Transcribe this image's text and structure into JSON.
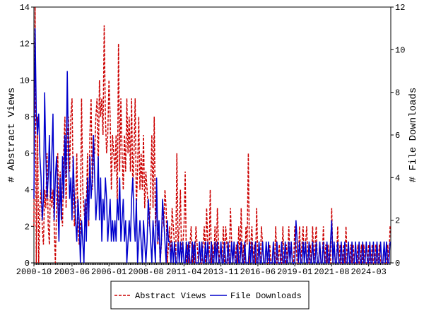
{
  "chart_data": {
    "type": "line",
    "ylabel": "# Abstract Views",
    "y2label": "# File Downloads",
    "categories": [
      "2000-10",
      null,
      null,
      null,
      null,
      null,
      null,
      null,
      null,
      null,
      null,
      null,
      null,
      null,
      null,
      null,
      null,
      null,
      null,
      null,
      null,
      null,
      null,
      null,
      null,
      null,
      null,
      null,
      null,
      null,
      null,
      null,
      "2003-06",
      null,
      null,
      null,
      null,
      null,
      null,
      null,
      null,
      null,
      null,
      null,
      null,
      null,
      null,
      null,
      null,
      null,
      null,
      null,
      null,
      null,
      null,
      null,
      null,
      null,
      null,
      null,
      null,
      null,
      null,
      "2006-01",
      null,
      null,
      null,
      null,
      null,
      null,
      null,
      null,
      null,
      null,
      null,
      null,
      null,
      null,
      null,
      null,
      null,
      null,
      null,
      null,
      null,
      null,
      null,
      null,
      null,
      null,
      null,
      null,
      null,
      null,
      "2008-08",
      null,
      null,
      null,
      null,
      null,
      null,
      null,
      null,
      null,
      null,
      null,
      null,
      null,
      null,
      null,
      null,
      null,
      null,
      null,
      null,
      null,
      null,
      null,
      null,
      null,
      null,
      null,
      null,
      null,
      null,
      null,
      "2011-04",
      null,
      null,
      null,
      null,
      null,
      null,
      null,
      null,
      null,
      null,
      null,
      null,
      null,
      null,
      null,
      null,
      null,
      null,
      null,
      null,
      null,
      null,
      null,
      null,
      null,
      null,
      null,
      null,
      null,
      null,
      "2013-11",
      null,
      null,
      null,
      null,
      null,
      null,
      null,
      null,
      null,
      null,
      null,
      null,
      null,
      null,
      null,
      null,
      null,
      null,
      null,
      null,
      null,
      null,
      null,
      null,
      null,
      null,
      null,
      null,
      null,
      null,
      "2016-06",
      null,
      null,
      null,
      null,
      null,
      null,
      null,
      null,
      null,
      null,
      null,
      null,
      null,
      null,
      null,
      null,
      null,
      null,
      null,
      null,
      null,
      null,
      null,
      null,
      null,
      null,
      null,
      null,
      null,
      null,
      "2019-01",
      null,
      null,
      null,
      null,
      null,
      null,
      null,
      null,
      null,
      null,
      null,
      null,
      null,
      null,
      null,
      null,
      null,
      null,
      null,
      null,
      null,
      null,
      null,
      null,
      null,
      null,
      null,
      null,
      null,
      null,
      "2021-08",
      null,
      null,
      null,
      null,
      null,
      null,
      null,
      null,
      null,
      null,
      null,
      null,
      null,
      null,
      null,
      null,
      null,
      null,
      null,
      null,
      null,
      null,
      null,
      null,
      null,
      null,
      null,
      null,
      null,
      null,
      "2024-03",
      null,
      null,
      null,
      null,
      null,
      null,
      null,
      null,
      null,
      null,
      null,
      null,
      null,
      null,
      null,
      null,
      null,
      null
    ],
    "series": [
      {
        "name": "Abstract Views",
        "color": "#cc0000",
        "dash": true,
        "values": [
          2,
          14,
          0,
          8,
          0,
          3,
          4,
          2,
          1,
          4,
          3,
          6,
          2,
          1,
          5,
          3,
          4,
          2,
          0,
          3,
          6,
          2,
          5,
          3,
          2,
          6,
          8,
          3,
          7,
          8,
          5,
          8,
          9,
          4,
          2,
          3,
          6,
          2,
          1,
          2,
          9,
          4,
          3,
          2,
          3,
          6,
          2,
          7,
          9,
          4,
          6,
          6,
          8,
          9,
          5,
          10,
          8,
          9,
          7,
          13,
          8,
          6,
          7,
          10,
          8,
          4,
          7,
          6,
          5,
          7,
          3,
          12,
          5,
          9,
          6,
          4,
          7,
          5,
          9,
          6,
          8,
          5,
          9,
          4,
          6,
          9,
          3,
          5,
          8,
          4,
          6,
          4,
          7,
          3,
          5,
          4,
          3,
          2,
          4,
          7,
          3,
          8,
          2,
          4,
          1,
          2,
          0,
          1,
          3,
          2,
          4,
          3,
          0,
          1,
          2,
          0,
          3,
          2,
          1,
          0,
          6,
          1,
          2,
          4,
          0,
          1,
          2,
          5,
          0,
          1,
          0,
          1,
          2,
          0,
          1,
          0,
          2,
          1,
          0,
          1,
          0,
          0,
          1,
          2,
          0,
          3,
          1,
          0,
          4,
          0,
          1,
          0,
          2,
          0,
          3,
          1,
          0,
          1,
          0,
          2,
          0,
          2,
          1,
          0,
          0,
          3,
          1,
          0,
          1,
          0,
          1,
          0,
          2,
          0,
          3,
          0,
          1,
          0,
          2,
          1,
          6,
          0,
          1,
          2,
          0,
          1,
          0,
          3,
          0,
          1,
          0,
          2,
          1,
          0,
          0,
          1,
          0,
          0,
          1,
          0,
          0,
          1,
          0,
          2,
          0,
          0,
          1,
          0,
          0,
          2,
          0,
          0,
          1,
          0,
          2,
          0,
          1,
          0,
          0,
          2,
          1,
          0,
          0,
          2,
          0,
          1,
          2,
          0,
          1,
          2,
          0,
          0,
          1,
          0,
          2,
          0,
          1,
          2,
          0,
          0,
          1,
          0,
          0,
          2,
          0,
          1,
          0,
          1,
          0,
          0,
          3,
          0,
          1,
          0,
          0,
          2,
          0,
          1,
          0,
          0,
          1,
          0,
          2,
          0,
          0,
          0,
          1,
          0,
          1,
          0,
          0,
          0,
          1,
          0,
          0,
          1,
          0,
          1,
          0,
          0,
          0,
          1,
          0,
          0,
          1,
          0,
          0,
          1,
          0,
          0,
          1,
          0,
          0,
          0,
          1,
          0,
          0,
          1,
          0,
          2
        ]
      },
      {
        "name": "File Downloads",
        "color": "#0000cc",
        "axis": "y2",
        "values": [
          3,
          11,
          7,
          6,
          7,
          5,
          4,
          2,
          3,
          8,
          5,
          3,
          4,
          6,
          3,
          5,
          7,
          2,
          4,
          5,
          3,
          1,
          4,
          2,
          5,
          3,
          6,
          4,
          9,
          5,
          3,
          4,
          2,
          5,
          3,
          2,
          1,
          3,
          2,
          0,
          2,
          1,
          0,
          3,
          1,
          4,
          2,
          5,
          3,
          4,
          6,
          4,
          2,
          3,
          5,
          2,
          4,
          1,
          3,
          2,
          4,
          3,
          1,
          2,
          3,
          1,
          2,
          1,
          2,
          1,
          3,
          2,
          4,
          1,
          2,
          3,
          1,
          2,
          0,
          1,
          2,
          1,
          3,
          4,
          2,
          1,
          3,
          0,
          1,
          2,
          1,
          0,
          2,
          1,
          0,
          1,
          3,
          2,
          1,
          0,
          2,
          1,
          0,
          4,
          1,
          2,
          0,
          1,
          3,
          2,
          1,
          0,
          2,
          1,
          1,
          0,
          1,
          0,
          1,
          0,
          0,
          1,
          0,
          1,
          0,
          1,
          0,
          0,
          1,
          0,
          1,
          0,
          0,
          1,
          0,
          1,
          0,
          0,
          0,
          1,
          0,
          1,
          0,
          0,
          1,
          0,
          1,
          0,
          0,
          1,
          0,
          0,
          1,
          0,
          1,
          0,
          0,
          1,
          0,
          0,
          1,
          0,
          0,
          1,
          0,
          0,
          1,
          0,
          1,
          0,
          0,
          1,
          0,
          0,
          1,
          0,
          0,
          1,
          0,
          0,
          0,
          1,
          0,
          1,
          0,
          0,
          1,
          0,
          0,
          1,
          0,
          0,
          1,
          0,
          0,
          1,
          0,
          1,
          0,
          0,
          0,
          1,
          0,
          0,
          1,
          0,
          0,
          0,
          1,
          0,
          0,
          1,
          0,
          0,
          1,
          0,
          1,
          0,
          0,
          0,
          2,
          1,
          0,
          1,
          0,
          0,
          1,
          0,
          1,
          0,
          0,
          1,
          0,
          0,
          1,
          0,
          0,
          1,
          0,
          0,
          1,
          0,
          0,
          1,
          0,
          0,
          1,
          0,
          0,
          1,
          2,
          0,
          1,
          0,
          0,
          1,
          0,
          0,
          1,
          0,
          0,
          1,
          0,
          0,
          1,
          0,
          0,
          1,
          0,
          0,
          1,
          0,
          0,
          1,
          0,
          0,
          1,
          0,
          0,
          1,
          0,
          0,
          1,
          0,
          0,
          1,
          0,
          0,
          1,
          0,
          0,
          1,
          0,
          0,
          1,
          0,
          1,
          0,
          0,
          1
        ]
      }
    ],
    "ylim": [
      0,
      14
    ],
    "yticks": [
      0,
      2,
      4,
      6,
      8,
      10,
      12,
      14
    ],
    "y2lim": [
      0,
      12
    ],
    "y2ticks": [
      0,
      2,
      4,
      6,
      8,
      10,
      12
    ]
  }
}
